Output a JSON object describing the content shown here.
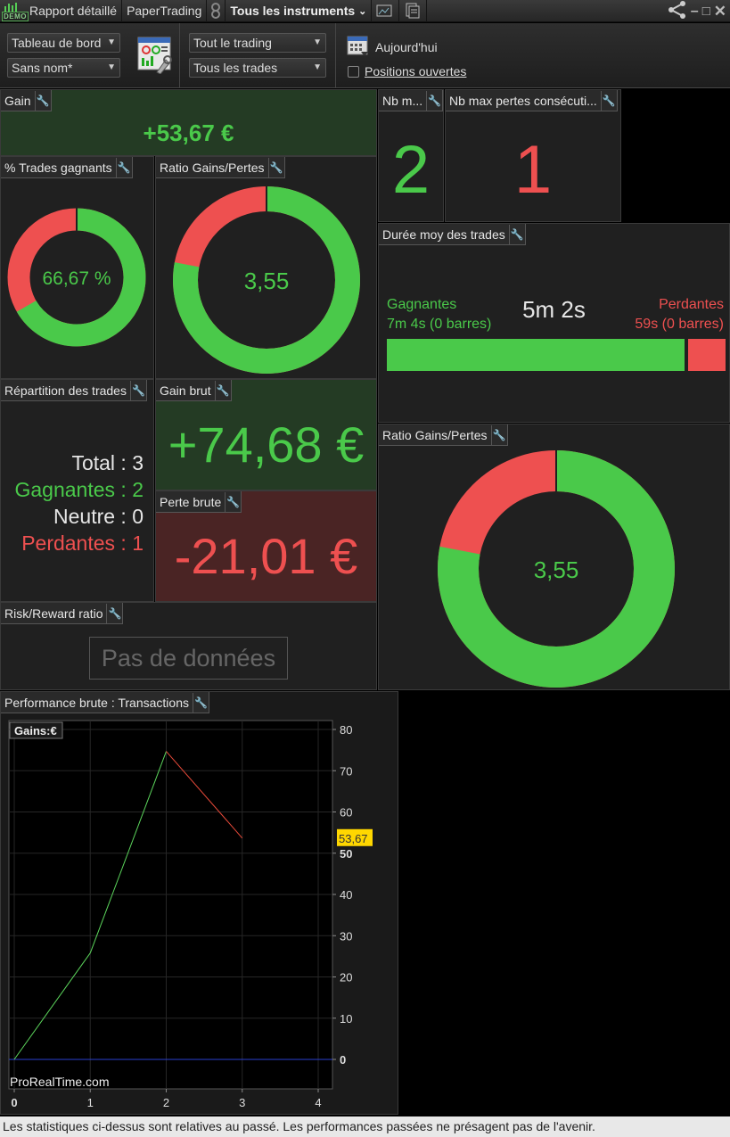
{
  "titlebar": {
    "demo_label": "DEMO",
    "tabs": [
      "Rapport détaillé",
      "PaperTrading",
      "Tous les instruments"
    ],
    "chevron": "chevron-down-icon"
  },
  "toolbar": {
    "view_select": "Tableau de bord",
    "layout_select": "Sans nom*",
    "trading_select": "Tout le trading",
    "trades_select": "Tous les trades",
    "date_label": "Aujourd'hui",
    "positions_label": "Positions ouvertes"
  },
  "panels": {
    "gain": {
      "title": "Gain",
      "value": "+53,67 €"
    },
    "nb_max_gains": {
      "title": "Nb m...",
      "value": "2"
    },
    "nb_max_losses": {
      "title": "Nb max pertes consécuti...",
      "value": "1"
    },
    "winrate": {
      "title": "% Trades gagnants",
      "value": "66,67 %",
      "win_fraction": 0.6667
    },
    "ratio_small": {
      "title": "Ratio Gains/Pertes",
      "value": "3,55",
      "win_fraction": 0.78
    },
    "duration": {
      "title": "Durée moy des trades",
      "avg": "5m 2s",
      "win_label": "Gagnantes",
      "win_value": "7m 4s (0 barres)",
      "loss_label": "Perdantes",
      "loss_value": "59s (0 barres)",
      "win_fraction": 0.88
    },
    "distribution": {
      "title": "Répartition des trades",
      "total": "Total : 3",
      "wins": "Gagnantes : 2",
      "neutral": "Neutre : 0",
      "losses": "Perdantes : 1"
    },
    "gross_gain": {
      "title": "Gain brut",
      "value": "+74,68 €"
    },
    "gross_loss": {
      "title": "Perte brute",
      "value": "-21,01 €"
    },
    "ratio_large": {
      "title": "Ratio Gains/Pertes",
      "value": "3,55",
      "win_fraction": 0.78
    },
    "risk_reward": {
      "title": "Risk/Reward ratio",
      "value": "Pas de données"
    },
    "performance": {
      "title": "Performance brute : Transactions"
    }
  },
  "chart_data": {
    "type": "line",
    "legend": "Gains:€",
    "watermark": "ProRealTime.com",
    "last_value_label": "53,67",
    "x": [
      0,
      1,
      2,
      3
    ],
    "values": [
      0,
      25.8,
      74.68,
      53.67
    ],
    "segment_colors": [
      "#5cd65c",
      "#5cd65c",
      "#e84a3a"
    ],
    "xlim": [
      0,
      4
    ],
    "ylim": [
      -6,
      82
    ],
    "x_ticks": [
      "0",
      "1",
      "2",
      "3",
      "4"
    ],
    "y_ticks": [
      "0",
      "10",
      "20",
      "30",
      "40",
      "50",
      "60",
      "70",
      "80"
    ],
    "zero_line_color": "#2a3fd0",
    "grid": true
  },
  "footer": "Les statistiques ci-dessus sont relatives au passé. Les performances passées ne présagent pas de l'avenir.",
  "colors": {
    "win": "#4ac94a",
    "loss": "#ee5050",
    "gain_bg": "#243b24",
    "loss_bg": "#4a2424",
    "flag": "#ffd700"
  }
}
